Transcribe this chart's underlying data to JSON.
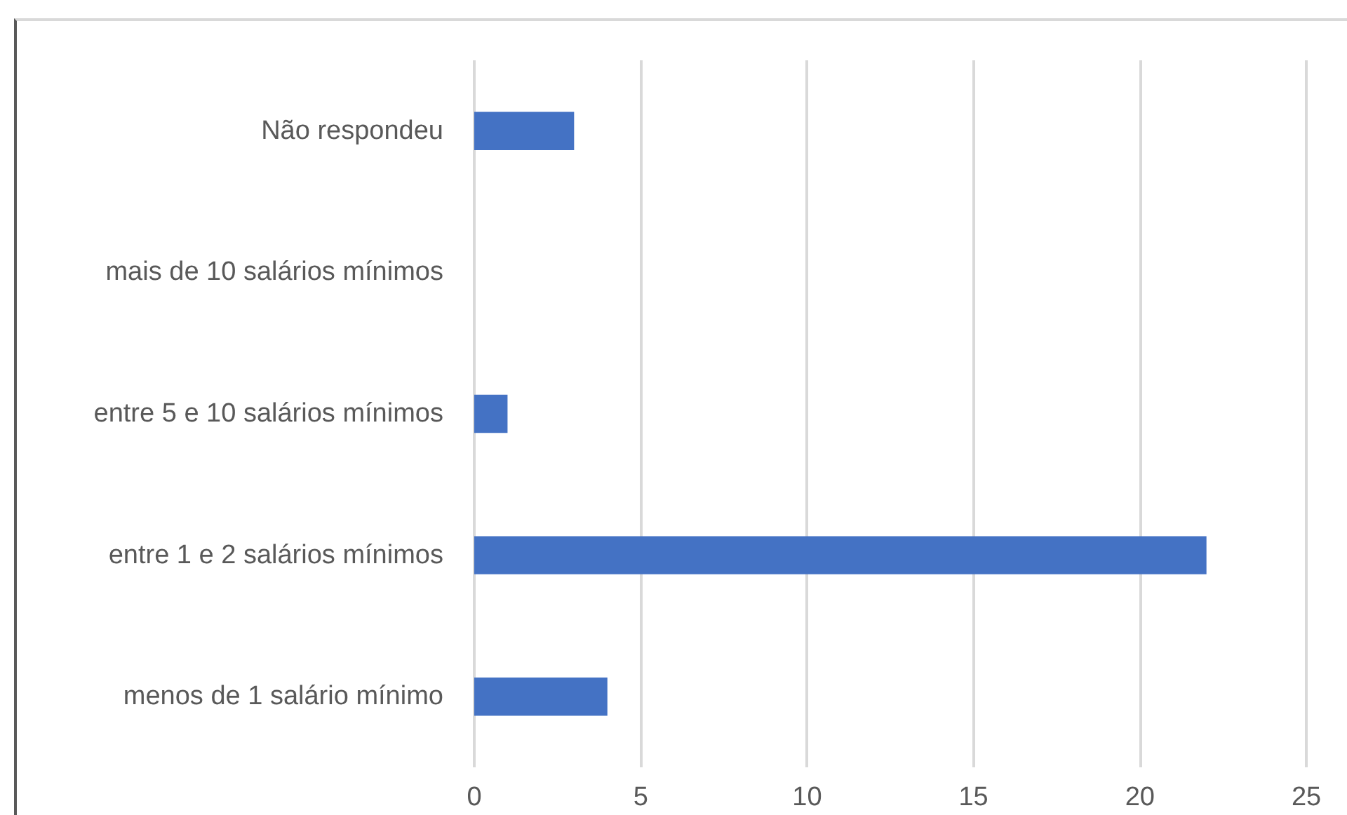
{
  "chart_data": {
    "type": "bar",
    "orientation": "horizontal",
    "categories": [
      "Não respondeu",
      "mais de 10 salários mínimos",
      "entre 5 e 10 salários mínimos",
      "entre 1 e 2 salários mínimos",
      "menos de 1 salário mínimo"
    ],
    "values": [
      3,
      0,
      1,
      22,
      4
    ],
    "color": "#4472c4",
    "xlim": [
      0,
      25
    ],
    "xticks": [
      0,
      5,
      10,
      15,
      20,
      25
    ],
    "grid": "x"
  }
}
